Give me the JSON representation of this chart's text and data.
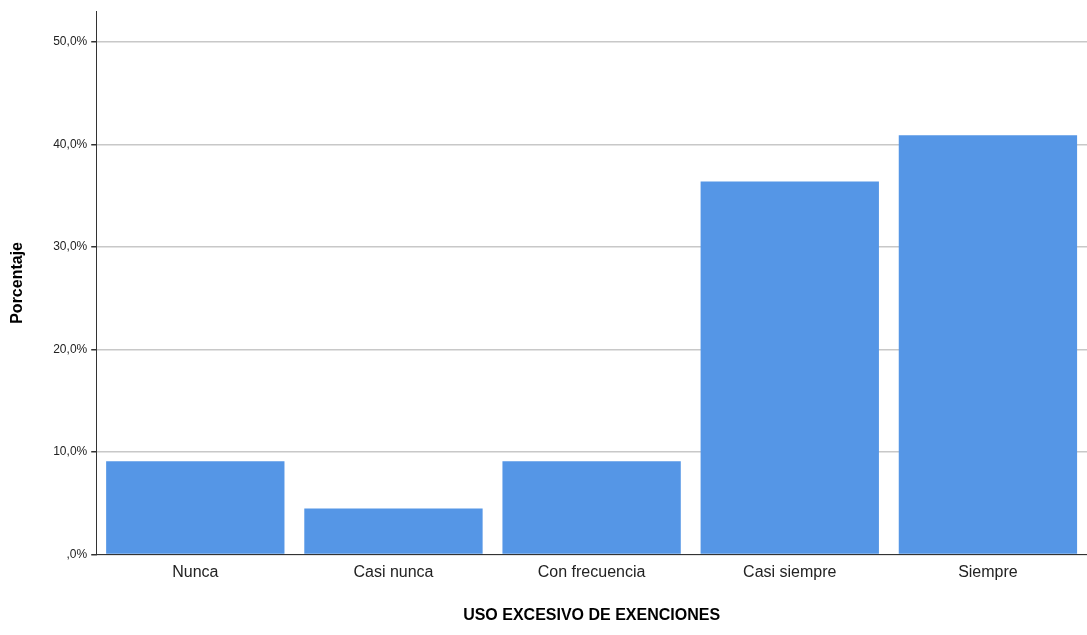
{
  "chart_data": {
    "type": "bar",
    "xlabel": "USO EXCESIVO DE EXENCIONES",
    "ylabel": "Porcentaje",
    "categories": [
      "Nunca",
      "Casi nunca",
      "Con frecuencia",
      "Casi siempre",
      "Siempre"
    ],
    "values": [
      9.1,
      4.5,
      9.1,
      36.4,
      40.9
    ],
    "color": "#5596e6",
    "ylim": [
      0,
      53
    ],
    "yticks": [
      {
        "value": 0,
        "label": ",0%"
      },
      {
        "value": 10,
        "label": "10,0%"
      },
      {
        "value": 20,
        "label": "20,0%"
      },
      {
        "value": 30,
        "label": "30,0%"
      },
      {
        "value": 40,
        "label": "40,0%"
      },
      {
        "value": 50,
        "label": "50,0%"
      }
    ],
    "grid": "y"
  }
}
